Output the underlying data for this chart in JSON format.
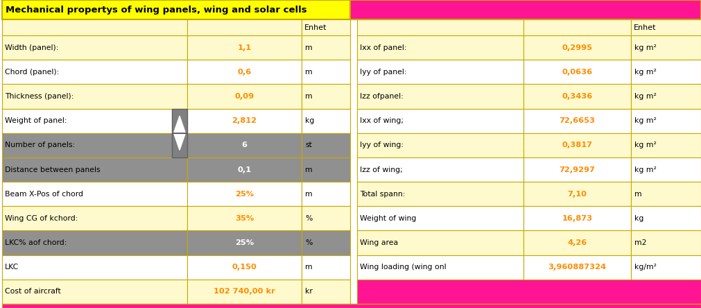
{
  "title": "Mechanical propertys of wing panels, wing and solar cells",
  "fig_width": 10.11,
  "fig_height": 4.44,
  "colors": {
    "title_bg": "#FFFF00",
    "light_yellow": "#FFFACD",
    "white": "#FFFFFF",
    "gray": "#909090",
    "dark_gray": "#808080",
    "orange": "#FF8C00",
    "black": "#000000",
    "pink": "#FF1493",
    "border": "#C8A800",
    "light_gray_cell": "#B0B0B0"
  },
  "left_rows": [
    {
      "label": "Width (panel):",
      "value": "1,1",
      "unit": "m",
      "bg": "light",
      "val_style": "orange"
    },
    {
      "label": "Chord (panel):",
      "value": "0,6",
      "unit": "m",
      "bg": "white",
      "val_style": "orange"
    },
    {
      "label": "Thickness (panel):",
      "value": "0,09",
      "unit": "m",
      "bg": "light",
      "val_style": "orange"
    },
    {
      "label": "Weight of panel:",
      "value": "2,812",
      "unit": "kg",
      "bg": "white",
      "val_style": "orange"
    },
    {
      "label": "Number of panels:",
      "value": "6",
      "unit": "st",
      "bg": "gray",
      "val_style": "white",
      "has_spinner": true
    },
    {
      "label": "Distance between panels",
      "value": "0,1",
      "unit": "m",
      "bg": "gray",
      "val_style": "white"
    },
    {
      "label": "Beam X-Pos of chord",
      "value": "25%",
      "unit": "m",
      "bg": "white",
      "val_style": "orange"
    },
    {
      "label": "Wing CG of kchord:",
      "value": "35%",
      "unit": "%",
      "bg": "light",
      "val_style": "orange"
    },
    {
      "label": "LKC% aof chord:",
      "value": "25%",
      "unit": "%",
      "bg": "gray",
      "val_style": "white"
    },
    {
      "label": "LKC",
      "value": "0,150",
      "unit": "m",
      "bg": "white",
      "val_style": "orange"
    },
    {
      "label": "Cost of aircraft",
      "value": "102 740,00 kr",
      "unit": "kr",
      "bg": "light",
      "val_style": "orange"
    }
  ],
  "right_rows": [
    {
      "label": "Ixx of panel:",
      "value": "0,2995",
      "unit": "kg m²",
      "bg": "light",
      "val_style": "orange"
    },
    {
      "label": "Iyy of panel:",
      "value": "0,0636",
      "unit": "kg m²",
      "bg": "white",
      "val_style": "orange"
    },
    {
      "label": "Izz ofpanel:",
      "value": "0,3436",
      "unit": "kg m²",
      "bg": "light",
      "val_style": "orange"
    },
    {
      "label": "Ixx of wing;",
      "value": "72,6653",
      "unit": "kg m²",
      "bg": "white",
      "val_style": "orange"
    },
    {
      "label": "Iyy of wing:",
      "value": "0,3817",
      "unit": "kg m²",
      "bg": "light",
      "val_style": "orange"
    },
    {
      "label": "Izz of wing;",
      "value": "72,9297",
      "unit": "kg m²",
      "bg": "white",
      "val_style": "orange"
    },
    {
      "label": "Total spann:",
      "value": "7,10",
      "unit": "m",
      "bg": "light",
      "val_style": "orange"
    },
    {
      "label": "Weight of wing",
      "value": "16,873",
      "unit": "kg",
      "bg": "white",
      "val_style": "orange"
    },
    {
      "label": "Wing area",
      "value": "4,26",
      "unit": "m2",
      "bg": "light",
      "val_style": "orange"
    },
    {
      "label": "Wing loading (wing onl",
      "value": "3,960887324",
      "unit": "kg/m²",
      "bg": "white",
      "val_style": "orange"
    }
  ]
}
